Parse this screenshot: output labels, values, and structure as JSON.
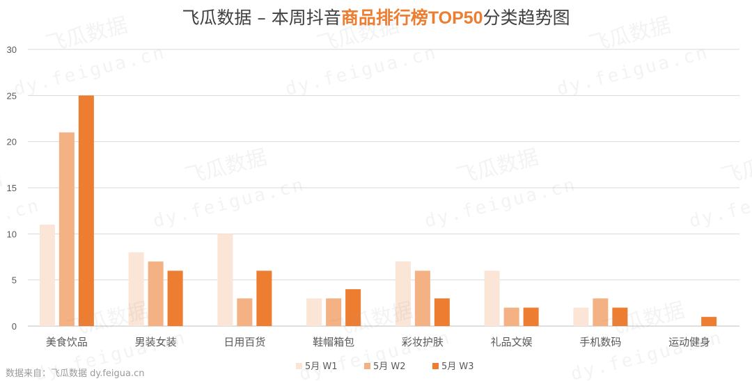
{
  "title": {
    "part1": "飞瓜数据 – 本周抖音",
    "part2": "商品排行榜",
    "part3": "TOP50",
    "part4": "分类趋势图"
  },
  "source": "数据来自：飞瓜数据  dy.feigua.cn",
  "watermark": {
    "cn": "飞瓜数据",
    "en": "dy.feigua.cn"
  },
  "chart_data": {
    "type": "bar",
    "categories": [
      "美食饮品",
      "男装女装",
      "日用百货",
      "鞋帽箱包",
      "彩妆护肤",
      "礼品文娱",
      "手机数码",
      "运动健身"
    ],
    "series": [
      {
        "name": "5月 W1",
        "color": "#fbe5d6",
        "values": [
          11,
          8,
          10,
          3,
          7,
          6,
          2,
          0
        ]
      },
      {
        "name": "5月 W2",
        "color": "#f4b183",
        "values": [
          21,
          7,
          3,
          3,
          6,
          2,
          3,
          0
        ]
      },
      {
        "name": "5月 W3",
        "color": "#ed7d31",
        "values": [
          25,
          6,
          6,
          4,
          3,
          2,
          2,
          1
        ]
      }
    ],
    "ylim": [
      0,
      30
    ],
    "yticks": [
      0,
      5,
      10,
      15,
      20,
      25,
      30
    ],
    "grid": true,
    "legend": "bottom",
    "xlabel": "",
    "ylabel": ""
  }
}
